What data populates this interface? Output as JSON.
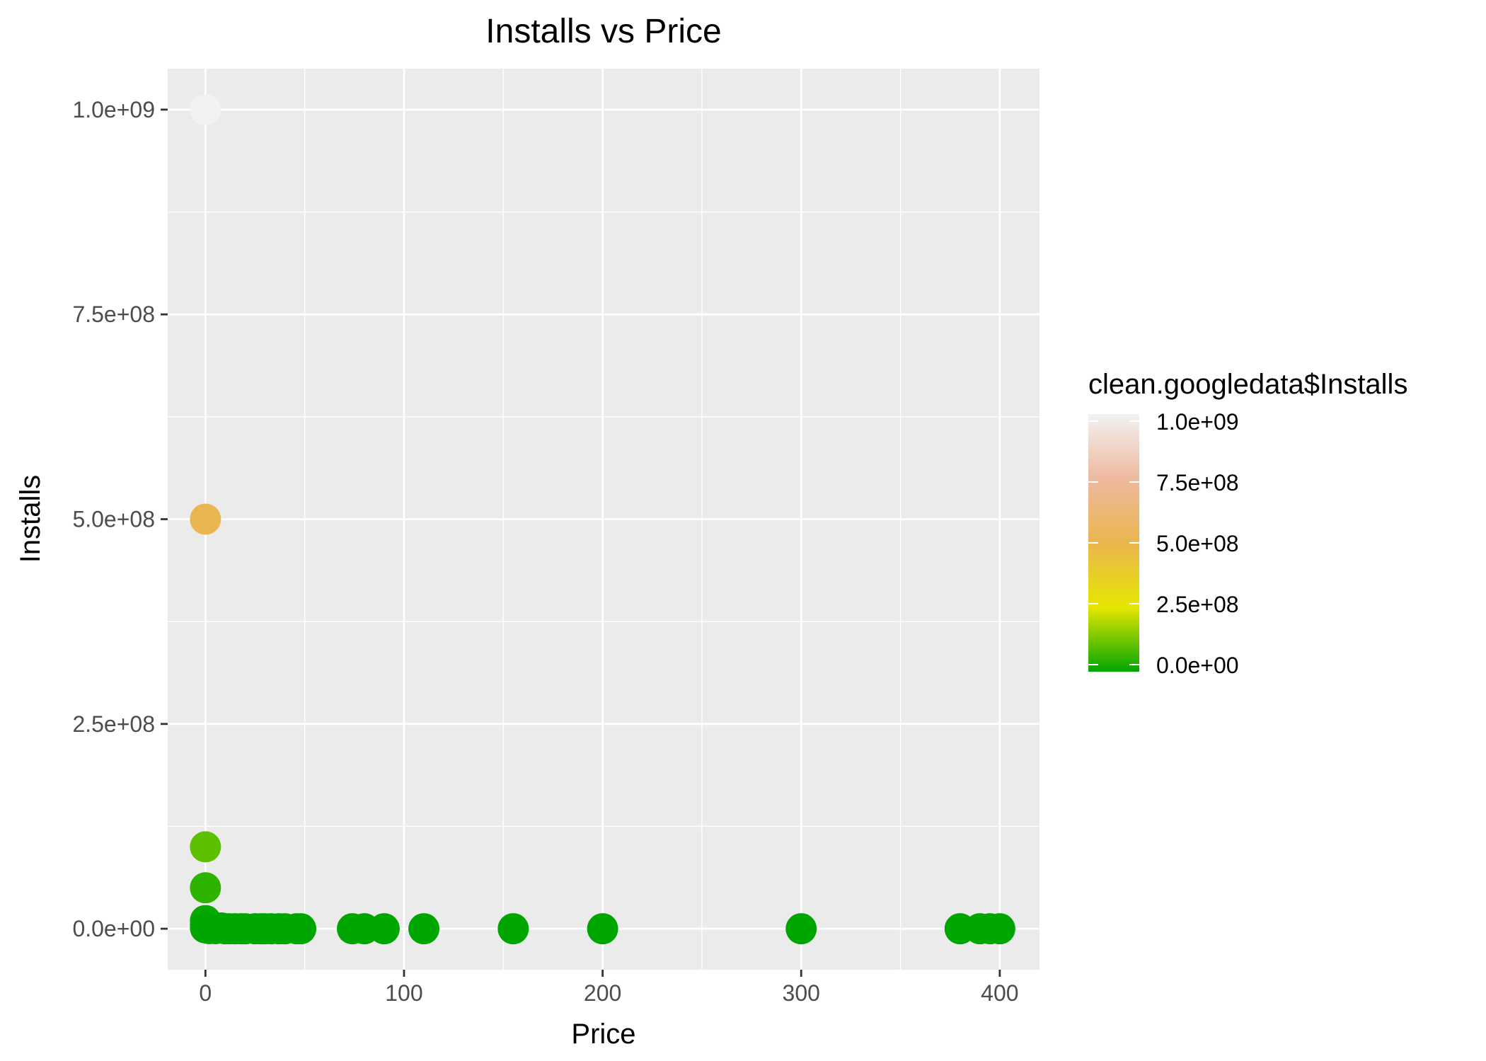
{
  "chart_data": {
    "type": "scatter",
    "title": "Installs vs Price",
    "xlabel": "Price",
    "ylabel": "Installs",
    "xlim": [
      -19,
      420
    ],
    "ylim": [
      -50000000,
      1050000000
    ],
    "x_ticks": [
      {
        "value": 0,
        "label": "0"
      },
      {
        "value": 100,
        "label": "100"
      },
      {
        "value": 200,
        "label": "200"
      },
      {
        "value": 300,
        "label": "300"
      },
      {
        "value": 400,
        "label": "400"
      }
    ],
    "y_ticks": [
      {
        "value": 0,
        "label": "0.0e+00"
      },
      {
        "value": 250000000,
        "label": "2.5e+08"
      },
      {
        "value": 500000000,
        "label": "5.0e+08"
      },
      {
        "value": 750000000,
        "label": "7.5e+08"
      },
      {
        "value": 1000000000,
        "label": "1.0e+09"
      }
    ],
    "grid": true,
    "legend": {
      "title": "clean.googledata$Installs",
      "position": "right",
      "range": [
        0,
        1000000000
      ],
      "colors": [
        "#00a600",
        "#e6e600",
        "#eab64f",
        "#eeb99f",
        "#f2f2f2"
      ],
      "ticks": [
        {
          "value": 0,
          "label": "0.0e+00"
        },
        {
          "value": 250000000,
          "label": "2.5e+08"
        },
        {
          "value": 500000000,
          "label": "5.0e+08"
        },
        {
          "value": 750000000,
          "label": "7.5e+08"
        },
        {
          "value": 1000000000,
          "label": "1.0e+09"
        }
      ]
    },
    "points": [
      {
        "x": 0,
        "y": 1000000000
      },
      {
        "x": 0,
        "y": 500000000
      },
      {
        "x": 0,
        "y": 100000000
      },
      {
        "x": 0,
        "y": 50000000
      },
      {
        "x": 0,
        "y": 10000000
      },
      {
        "x": 0,
        "y": 5000000
      },
      {
        "x": 0,
        "y": 1000000
      },
      {
        "x": 1,
        "y": 1000000
      },
      {
        "x": 3,
        "y": 500000
      },
      {
        "x": 8,
        "y": 1000000
      },
      {
        "x": 2,
        "y": 100000
      },
      {
        "x": 5,
        "y": 50000
      },
      {
        "x": 10,
        "y": 10000
      },
      {
        "x": 12,
        "y": 10000
      },
      {
        "x": 15,
        "y": 5000
      },
      {
        "x": 18,
        "y": 10000
      },
      {
        "x": 20,
        "y": 1000
      },
      {
        "x": 25,
        "y": 1000
      },
      {
        "x": 28,
        "y": 1000
      },
      {
        "x": 30,
        "y": 1000
      },
      {
        "x": 33,
        "y": 500
      },
      {
        "x": 37,
        "y": 1000
      },
      {
        "x": 40,
        "y": 100
      },
      {
        "x": 46,
        "y": 100
      },
      {
        "x": 48,
        "y": 100
      },
      {
        "x": 74,
        "y": 100
      },
      {
        "x": 80,
        "y": 100
      },
      {
        "x": 90,
        "y": 1000
      },
      {
        "x": 110,
        "y": 100
      },
      {
        "x": 155,
        "y": 100
      },
      {
        "x": 200,
        "y": 100
      },
      {
        "x": 300,
        "y": 100
      },
      {
        "x": 380,
        "y": 1000
      },
      {
        "x": 390,
        "y": 100
      },
      {
        "x": 395,
        "y": 1000
      },
      {
        "x": 400,
        "y": 100
      }
    ]
  }
}
